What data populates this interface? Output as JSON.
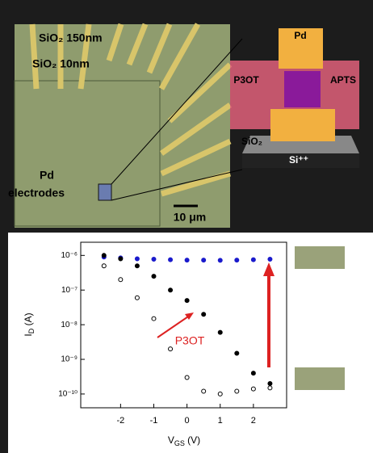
{
  "micrograph": {
    "labels": [
      "SiO₂ 150nm",
      "SiO₂ 10nm",
      "Pd",
      "electrodes"
    ],
    "scale_bar": "10 μm"
  },
  "schematic": {
    "labels": [
      "Pd",
      "P3OT",
      "APTS",
      "SiO₂",
      "Si⁺⁺"
    ]
  },
  "chart_data": {
    "type": "scatter",
    "log_y": true,
    "x_label": "V_GS (V)",
    "y_label": "I_D (A)",
    "annotation": "P3OT",
    "x": [
      -2.5,
      -2,
      -1.5,
      -1,
      -0.5,
      0,
      0.5,
      1,
      1.5,
      2,
      2.5
    ],
    "series": [
      {
        "color": "#1a1acc",
        "marker": "filled",
        "values": [
          9e-07,
          8.5e-07,
          8e-07,
          7.8e-07,
          7.5e-07,
          7.3e-07,
          7.3e-07,
          7.2e-07,
          7.3e-07,
          7.5e-07,
          7.8e-07
        ]
      },
      {
        "color": "#000000",
        "marker": "filled",
        "values": [
          1e-06,
          8e-07,
          5e-07,
          2.5e-07,
          1e-07,
          5e-08,
          2e-08,
          6e-09,
          1.5e-09,
          4e-10,
          2e-10
        ]
      },
      {
        "color": "#000000",
        "marker": "open",
        "values": [
          5e-07,
          2e-07,
          6e-08,
          1.5e-08,
          2e-09,
          3e-10,
          1.2e-10,
          1e-10,
          1.2e-10,
          1.4e-10,
          1.5e-10
        ]
      }
    ],
    "xlim": [
      -3.2,
      3
    ],
    "xticks": [
      -2,
      -1,
      0,
      1,
      2
    ],
    "ylim": [
      4e-11,
      2.4e-06
    ],
    "yticks": [
      {
        "value": 1e-10,
        "label": "10⁻¹⁰"
      },
      {
        "value": 1e-09,
        "label": "10⁻⁹"
      },
      {
        "value": 1e-08,
        "label": "10⁻⁸"
      },
      {
        "value": 1e-07,
        "label": "10⁻⁷"
      },
      {
        "value": 1e-06,
        "label": "10⁻⁶"
      }
    ]
  }
}
